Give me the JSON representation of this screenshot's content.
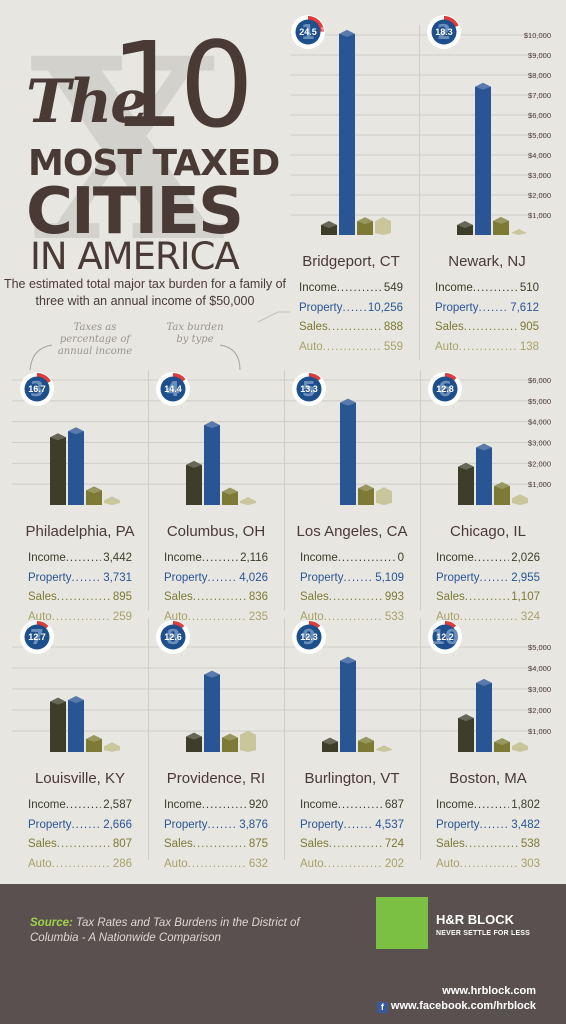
{
  "header": {
    "title_the": "The",
    "title_10": "10",
    "title_most": "MOST TAXED",
    "title_cities": "CITIES",
    "title_in_america": "IN AMERICA",
    "subtitle": "The estimated total major tax burden for a family of three with an annual income of $50,000",
    "note_percentage": "Taxes as percentage of annual income",
    "note_type": "Tax burden by type"
  },
  "labels": {
    "income": "Income",
    "property": "Property",
    "sales": "Sales",
    "auto": "Auto"
  },
  "colors": {
    "income": "#3d3d2a",
    "property": "#2a5595",
    "sales": "#7c7a34",
    "auto": "#c9c69c",
    "badge_ring": "#e23b3b"
  },
  "axes": {
    "top": [
      "$10,000",
      "$9,000",
      "$8,000",
      "$7,000",
      "$6,000",
      "$5,000",
      "$4,000",
      "$3,000",
      "$2,000",
      "$1,000"
    ],
    "middle": [
      "$6,000",
      "$5,000",
      "$4,000",
      "$3,000",
      "$2,000",
      "$1,000"
    ],
    "bottom": [
      "$5,000",
      "$4,000",
      "$3,000",
      "$2,000",
      "$1,000"
    ]
  },
  "chart_data": {
    "type": "bar",
    "series_names": [
      "Income",
      "Property",
      "Sales",
      "Auto"
    ],
    "cities": [
      {
        "rank": "1",
        "name": "Bridgeport, CT",
        "percent": "24.5",
        "pct": 24.5,
        "income": 549,
        "property": 10256,
        "sales": 888,
        "auto": 559,
        "income_txt": "549",
        "property_txt": "10,256",
        "sales_txt": "888",
        "auto_txt": "559"
      },
      {
        "rank": "2",
        "name": "Newark, NJ",
        "percent": "18.3",
        "pct": 18.3,
        "income": 510,
        "property": 7612,
        "sales": 905,
        "auto": 138,
        "income_txt": "510",
        "property_txt": "7,612",
        "sales_txt": "905",
        "auto_txt": "138"
      },
      {
        "rank": "3",
        "name": "Philadelphia, PA",
        "percent": "16.7",
        "pct": 16.7,
        "income": 3442,
        "property": 3731,
        "sales": 895,
        "auto": 259,
        "income_txt": "3,442",
        "property_txt": "3,731",
        "sales_txt": "895",
        "auto_txt": "259"
      },
      {
        "rank": "4",
        "name": "Columbus, OH",
        "percent": "14.4",
        "pct": 14.4,
        "income": 2116,
        "property": 4026,
        "sales": 836,
        "auto": 235,
        "income_txt": "2,116",
        "property_txt": "4,026",
        "sales_txt": "836",
        "auto_txt": "235"
      },
      {
        "rank": "5",
        "name": "Los Angeles, CA",
        "percent": "13.3",
        "pct": 13.3,
        "income": 0,
        "property": 5109,
        "sales": 993,
        "auto": 533,
        "income_txt": "0",
        "property_txt": "5,109",
        "sales_txt": "993",
        "auto_txt": "533"
      },
      {
        "rank": "6",
        "name": "Chicago, IL",
        "percent": "12.8",
        "pct": 12.8,
        "income": 2026,
        "property": 2955,
        "sales": 1107,
        "auto": 324,
        "income_txt": "2,026",
        "property_txt": "2,955",
        "sales_txt": "1,107",
        "auto_txt": "324"
      },
      {
        "rank": "7",
        "name": "Louisville, KY",
        "percent": "12.7",
        "pct": 12.7,
        "income": 2587,
        "property": 2666,
        "sales": 807,
        "auto": 286,
        "income_txt": "2,587",
        "property_txt": "2,666",
        "sales_txt": "807",
        "auto_txt": "286"
      },
      {
        "rank": "8",
        "name": "Providence, RI",
        "percent": "12.6",
        "pct": 12.6,
        "income": 920,
        "property": 3876,
        "sales": 875,
        "auto": 632,
        "income_txt": "920",
        "property_txt": "3,876",
        "sales_txt": "875",
        "auto_txt": "632"
      },
      {
        "rank": "9",
        "name": "Burlington, VT",
        "percent": "12.3",
        "pct": 12.3,
        "income": 687,
        "property": 4537,
        "sales": 724,
        "auto": 202,
        "income_txt": "687",
        "property_txt": "4,537",
        "sales_txt": "724",
        "auto_txt": "202"
      },
      {
        "rank": "10",
        "name": "Boston, MA",
        "percent": "12.2",
        "pct": 12.2,
        "income": 1802,
        "property": 3482,
        "sales": 538,
        "auto": 303,
        "income_txt": "1,802",
        "property_txt": "3,482",
        "sales_txt": "538",
        "auto_txt": "303"
      }
    ]
  },
  "footer": {
    "source_label": "Source:",
    "source_text": "Tax Rates and Tax Burdens in the District of Columbia - A Nationwide Comparison",
    "brand": "H&R BLOCK",
    "tagline": "NEVER SETTLE FOR LESS",
    "url_web": "www.hrblock.com",
    "url_facebook": "www.facebook.com/hrblock",
    "facebook_icon_glyph": "f"
  }
}
